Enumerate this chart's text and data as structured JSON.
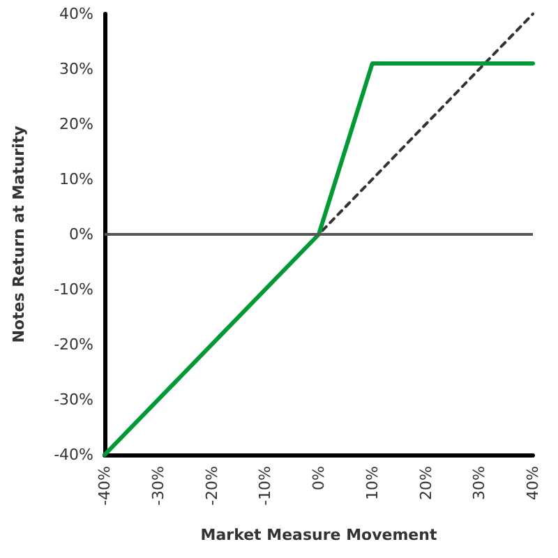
{
  "chart_data": {
    "type": "line",
    "xlabel": "Market Measure Movement",
    "ylabel": "Notes Return at Maturity",
    "series": [
      {
        "color": "#333333",
        "line_style": "dashed",
        "x": [
          -40,
          40
        ],
        "values": [
          -40,
          40
        ]
      },
      {
        "color": "#009933",
        "line_style": "solid",
        "x": [
          -40,
          0,
          10,
          40
        ],
        "values": [
          -40,
          0,
          31,
          31
        ]
      }
    ],
    "xlim": [
      -40,
      40
    ],
    "ylim": [
      -40,
      40
    ],
    "xticks": [
      {
        "value": -40,
        "label": "-40%"
      },
      {
        "value": -30,
        "label": "-30%"
      },
      {
        "value": -20,
        "label": "-20%"
      },
      {
        "value": -10,
        "label": "-10%"
      },
      {
        "value": 0,
        "label": "0%"
      },
      {
        "value": 10,
        "label": "10%"
      },
      {
        "value": 20,
        "label": "20%"
      },
      {
        "value": 30,
        "label": "30%"
      },
      {
        "value": 40,
        "label": "40%"
      }
    ],
    "yticks": [
      {
        "value": -40,
        "label": "-40%"
      },
      {
        "value": -30,
        "label": "-30%"
      },
      {
        "value": -20,
        "label": "-20%"
      },
      {
        "value": -10,
        "label": "-10%"
      },
      {
        "value": 0,
        "label": "0%"
      },
      {
        "value": 10,
        "label": "10%"
      },
      {
        "value": 20,
        "label": "20%"
      },
      {
        "value": 30,
        "label": "30%"
      },
      {
        "value": 40,
        "label": "40%"
      }
    ],
    "ref_lines": [
      {
        "axis": "y",
        "value": 0,
        "color": "#555555",
        "line_style": "solid"
      }
    ],
    "grid": false,
    "marker": "none"
  }
}
